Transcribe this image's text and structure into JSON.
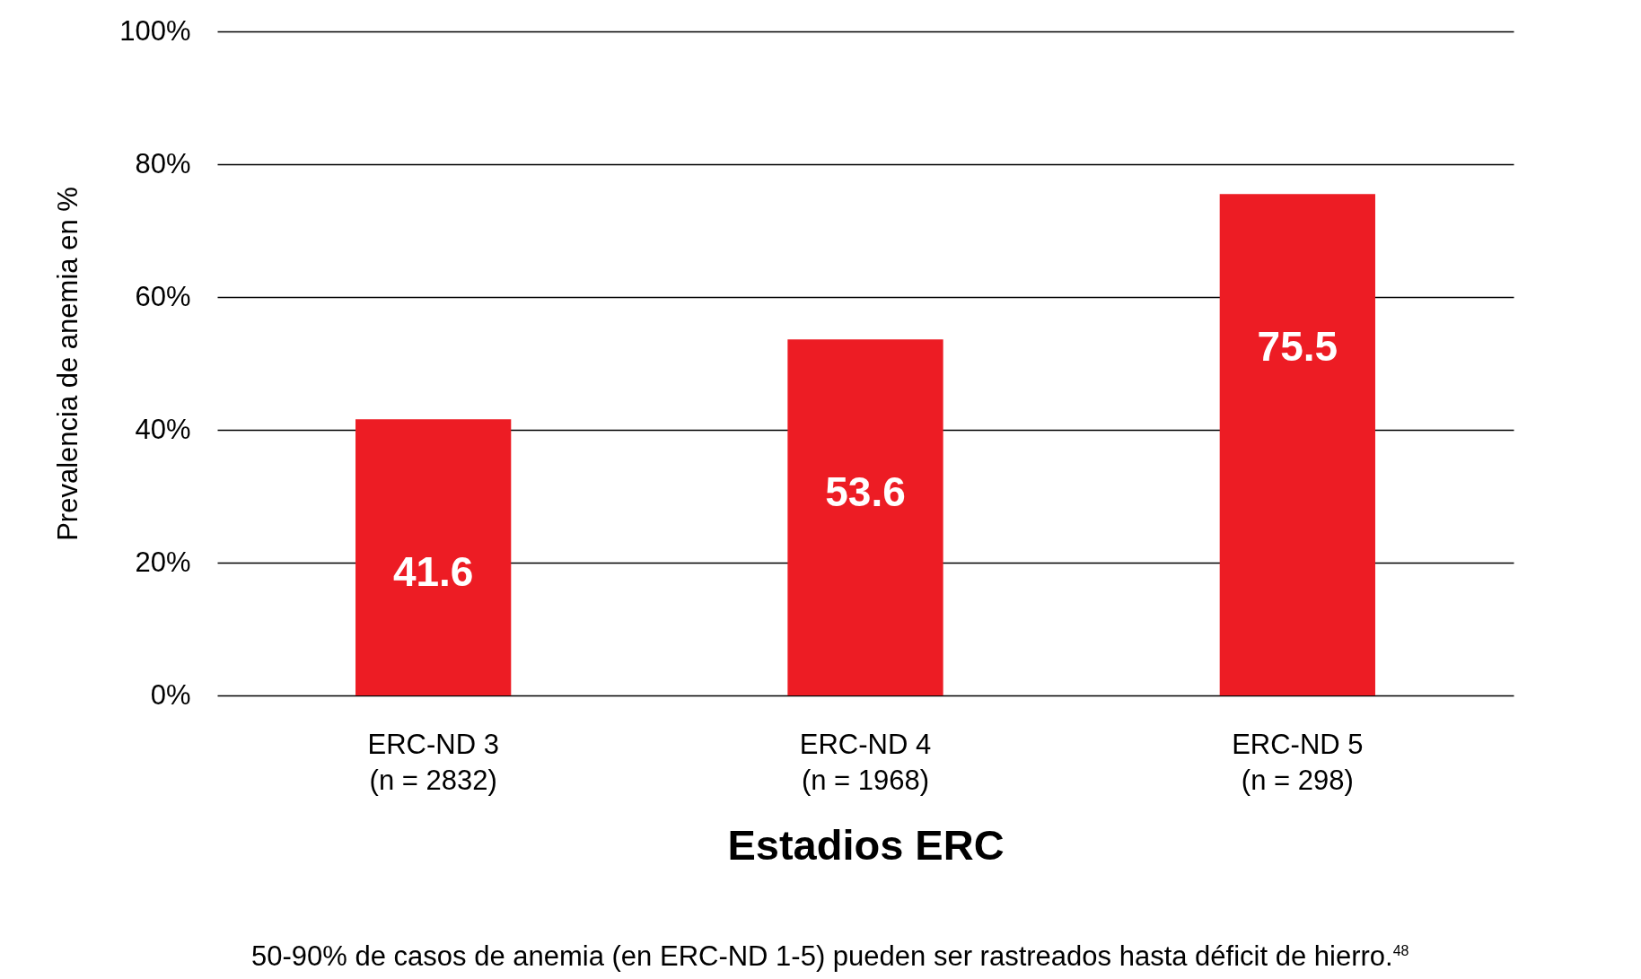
{
  "chart_data": {
    "type": "bar",
    "categories": [
      "ERC-ND 3\n(n = 2832)",
      "ERC-ND 4\n(n = 1968)",
      "ERC-ND 5\n(n = 298)"
    ],
    "values": [
      41.6,
      53.6,
      75.5
    ],
    "color": "#ed1c24",
    "ylabel": "Prevalencia de anemia en %",
    "xlabel": "Estadios ERC",
    "ylim": [
      0,
      100
    ],
    "yticks": [
      {
        "value": 0,
        "label": "0%"
      },
      {
        "value": 20,
        "label": "20%"
      },
      {
        "value": 40,
        "label": "40%"
      },
      {
        "value": 60,
        "label": "60%"
      },
      {
        "value": 80,
        "label": "80%"
      },
      {
        "value": 100,
        "label": "100%"
      }
    ],
    "grid": "y",
    "data_labels": true,
    "annotations": [
      "50-90% de casos de anemia (en ERC-ND 1-5) pueden ser rastreados hasta déficit de hierro.$^{48}$"
    ]
  }
}
